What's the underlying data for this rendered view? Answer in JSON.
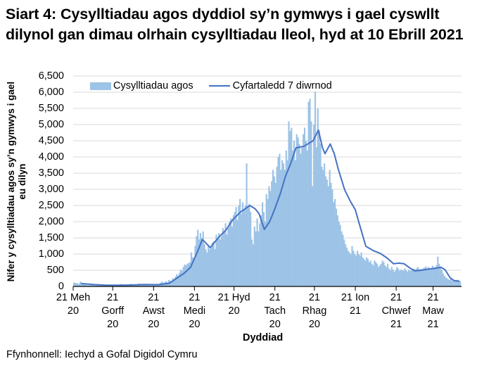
{
  "title": "Siart 4: Cysylltiadau agos dyddiol sy’n gymwys i gael cyswllt dilynol gan dimau olrhain cysylltiadau lleol, hyd at 10 Ebrill 2021",
  "source": "Ffynhonnell: Iechyd a Gofal Digidol Cymru",
  "colors": {
    "bars": "#9dc3e6",
    "line": "#4472c4",
    "grid": "#d9d9d9"
  },
  "chart_data": {
    "type": "bar",
    "title": "Siart 4: Cysylltiadau agos dyddiol sy’n gymwys i gael cyswllt dilynol gan dimau olrhain cysylltiadau lleol, hyd at 10 Ebrill 2021",
    "xlabel": "Dyddiad",
    "ylabel": "Nifer y cysylltiadau agos sy’n gymwys i gael eu dilyn",
    "ylim": [
      0,
      6500
    ],
    "yticks": [
      "0",
      "500",
      "1,000",
      "1,500",
      "2,000",
      "2,500",
      "3,000",
      "3,500",
      "4,000",
      "4,500",
      "5,000",
      "5,500",
      "6,000",
      "6,500"
    ],
    "ytick_values": [
      0,
      500,
      1000,
      1500,
      2000,
      2500,
      3000,
      3500,
      4000,
      4500,
      5000,
      5500,
      6000,
      6500
    ],
    "xticks": [
      {
        "label": "21 Meh\n20",
        "day": 0
      },
      {
        "label": "21\nGorff\n20",
        "day": 30
      },
      {
        "label": "21\nAwst\n20",
        "day": 61
      },
      {
        "label": "21\nMedi\n20",
        "day": 92
      },
      {
        "label": "21 Hyd\n20",
        "day": 122
      },
      {
        "label": "21\nTach\n20",
        "day": 153
      },
      {
        "label": "21\nRhag\n20",
        "day": 183
      },
      {
        "label": "21 Ion\n21",
        "day": 214
      },
      {
        "label": "21\nChwef\n21",
        "day": 245
      },
      {
        "label": "21\nMaw\n21",
        "day": 273
      }
    ],
    "x_start": "2020-06-21",
    "x_end": "2021-04-10",
    "grid": true,
    "legend_position": "top",
    "series": [
      {
        "name": "Cysylltiadau agos",
        "type": "bar",
        "note": "daily values from 2020-06-21, one per day (estimated)",
        "values": [
          120,
          110,
          100,
          90,
          80,
          150,
          60,
          70,
          60,
          50,
          40,
          45,
          40,
          50,
          60,
          40,
          30,
          40,
          50,
          45,
          40,
          35,
          45,
          40,
          30,
          40,
          50,
          45,
          40,
          35,
          40,
          45,
          50,
          40,
          30,
          60,
          80,
          50,
          60,
          70,
          60,
          50,
          60,
          80,
          70,
          60,
          50,
          40,
          60,
          80,
          90,
          60,
          70,
          60,
          50,
          40,
          60,
          50,
          40,
          40,
          60,
          50,
          60,
          80,
          70,
          90,
          120,
          150,
          100,
          130,
          160,
          120,
          200,
          180,
          150,
          250,
          220,
          300,
          380,
          330,
          420,
          520,
          480,
          600,
          680,
          650,
          700,
          720,
          750,
          1050,
          900,
          880,
          1250,
          1550,
          1750,
          1450,
          1650,
          1500,
          1700,
          1300,
          1150,
          1050,
          1250,
          1150,
          1200,
          1350,
          1400,
          1150,
          1600,
          1500,
          1650,
          1450,
          1550,
          1800,
          1700,
          1950,
          1600,
          1800,
          2000,
          2100,
          1850,
          2200,
          2300,
          2450,
          2050,
          2500,
          2700,
          2250,
          2600,
          2350,
          2500,
          3800,
          2450,
          2550,
          2300,
          1450,
          1300,
          1850,
          1700,
          2100,
          1700,
          1950,
          2200,
          2600,
          2300,
          2000,
          2850,
          2700,
          3100,
          2950,
          3250,
          3600,
          3400,
          3200,
          3700,
          4000,
          4100,
          3600,
          3900,
          3800,
          3600,
          4200,
          3900,
          5100,
          4800,
          4900,
          4200,
          4500,
          3900,
          4700,
          4600,
          4400,
          4100,
          4300,
          4700,
          4900,
          4500,
          4200,
          5700,
          5800,
          5100,
          3100,
          5000,
          6100,
          4300,
          5500,
          4800,
          4400,
          3700,
          3600,
          3800,
          3400,
          3300,
          3100,
          3600,
          3200,
          3000,
          2600,
          2700,
          2400,
          2200,
          2000,
          1900,
          1700,
          1600,
          1450,
          1300,
          1200,
          1100,
          1050,
          1000,
          1250,
          1100,
          1000,
          950,
          1100,
          1000,
          950,
          1050,
          900,
          850,
          800,
          900,
          850,
          750,
          800,
          700,
          650,
          800,
          750,
          700,
          600,
          650,
          700,
          800,
          750,
          650,
          600,
          700,
          550,
          500,
          600,
          520,
          450,
          500,
          600,
          550,
          480,
          520,
          500,
          480,
          560,
          500,
          450,
          520,
          480,
          500,
          530,
          550,
          520,
          560,
          600,
          520,
          540,
          500,
          560,
          580,
          620,
          550,
          600,
          520,
          560,
          640,
          580,
          600,
          650,
          920,
          700,
          620,
          500,
          400,
          330,
          280,
          250,
          220,
          200,
          230,
          180,
          170,
          200,
          190,
          210,
          180,
          160
        ]
      },
      {
        "name": "Cyfartaledd 7 diwrnod",
        "type": "line",
        "note": "7-day average control points [day, value] (estimated)",
        "points": [
          [
            6,
            90
          ],
          [
            15,
            60
          ],
          [
            25,
            40
          ],
          [
            40,
            40
          ],
          [
            54,
            60
          ],
          [
            65,
            55
          ],
          [
            73,
            100
          ],
          [
            78,
            240
          ],
          [
            84,
            400
          ],
          [
            89,
            590
          ],
          [
            94,
            1050
          ],
          [
            98,
            1450
          ],
          [
            104,
            1200
          ],
          [
            110,
            1500
          ],
          [
            116,
            1750
          ],
          [
            121,
            2060
          ],
          [
            127,
            2300
          ],
          [
            134,
            2500
          ],
          [
            138,
            2400
          ],
          [
            141,
            2250
          ],
          [
            145,
            1760
          ],
          [
            149,
            2000
          ],
          [
            153,
            2400
          ],
          [
            157,
            2850
          ],
          [
            161,
            3400
          ],
          [
            165,
            3800
          ],
          [
            169,
            4280
          ],
          [
            175,
            4330
          ],
          [
            182,
            4500
          ],
          [
            186,
            4830
          ],
          [
            189,
            4300
          ],
          [
            191,
            4100
          ],
          [
            195,
            4400
          ],
          [
            198,
            4100
          ],
          [
            201,
            3630
          ],
          [
            206,
            2980
          ],
          [
            210,
            2650
          ],
          [
            214,
            2370
          ],
          [
            218,
            1800
          ],
          [
            222,
            1240
          ],
          [
            228,
            1100
          ],
          [
            233,
            1020
          ],
          [
            238,
            880
          ],
          [
            243,
            700
          ],
          [
            247,
            720
          ],
          [
            251,
            700
          ],
          [
            255,
            580
          ],
          [
            259,
            480
          ],
          [
            264,
            500
          ],
          [
            270,
            540
          ],
          [
            275,
            560
          ],
          [
            279,
            590
          ],
          [
            282,
            520
          ],
          [
            286,
            260
          ],
          [
            289,
            180
          ],
          [
            293,
            160
          ]
        ]
      }
    ]
  },
  "legend": {
    "items": [
      {
        "label": "Cysylltiadau agos",
        "swatch": "bar"
      },
      {
        "label": "Cyfartaledd 7 diwrnod",
        "swatch": "line"
      }
    ]
  }
}
